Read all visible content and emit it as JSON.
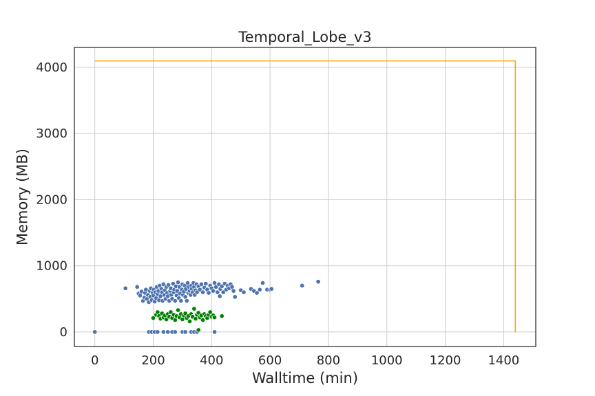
{
  "chart_data": {
    "type": "scatter",
    "title": "Temporal_Lobe_v3",
    "xlabel": "Walltime (min)",
    "ylabel": "Memory (MB)",
    "xlim": [
      -70,
      1510
    ],
    "ylim": [
      -220,
      4300
    ],
    "xticks": [
      0,
      200,
      400,
      600,
      800,
      1000,
      1200,
      1400
    ],
    "yticks": [
      0,
      1000,
      2000,
      3000,
      4000
    ],
    "grid": true,
    "colors": {
      "series_blue": "#4c72b0",
      "series_green": "#008000",
      "limit_line": "#ffa500",
      "grid": "#cccccc",
      "text": "#262626"
    },
    "series": [
      {
        "color": "#4c72b0",
        "points": [
          [
            0,
            0
          ],
          [
            105,
            660
          ],
          [
            145,
            680
          ],
          [
            150,
            580
          ],
          [
            155,
            550
          ],
          [
            160,
            610
          ],
          [
            165,
            470
          ],
          [
            170,
            520
          ],
          [
            172,
            590
          ],
          [
            175,
            640
          ],
          [
            178,
            500
          ],
          [
            182,
            560
          ],
          [
            185,
            450
          ],
          [
            188,
            620
          ],
          [
            190,
            530
          ],
          [
            192,
            660
          ],
          [
            195,
            480
          ],
          [
            198,
            590
          ],
          [
            200,
            550
          ],
          [
            202,
            640
          ],
          [
            205,
            460
          ],
          [
            207,
            600
          ],
          [
            210,
            510
          ],
          [
            212,
            680
          ],
          [
            215,
            570
          ],
          [
            218,
            620
          ],
          [
            220,
            480
          ],
          [
            222,
            700
          ],
          [
            225,
            540
          ],
          [
            228,
            650
          ],
          [
            230,
            600
          ],
          [
            232,
            470
          ],
          [
            235,
            720
          ],
          [
            238,
            560
          ],
          [
            240,
            630
          ],
          [
            242,
            500
          ],
          [
            245,
            680
          ],
          [
            248,
            590
          ],
          [
            250,
            540
          ],
          [
            252,
            710
          ],
          [
            255,
            470
          ],
          [
            258,
            620
          ],
          [
            260,
            660
          ],
          [
            262,
            560
          ],
          [
            265,
            500
          ],
          [
            268,
            730
          ],
          [
            270,
            600
          ],
          [
            272,
            640
          ],
          [
            275,
            470
          ],
          [
            278,
            690
          ],
          [
            280,
            550
          ],
          [
            282,
            620
          ],
          [
            285,
            750
          ],
          [
            288,
            510
          ],
          [
            290,
            680
          ],
          [
            292,
            580
          ],
          [
            295,
            470
          ],
          [
            298,
            640
          ],
          [
            300,
            720
          ],
          [
            302,
            560
          ],
          [
            305,
            610
          ],
          [
            308,
            700
          ],
          [
            310,
            530
          ],
          [
            312,
            650
          ],
          [
            315,
            470
          ],
          [
            318,
            740
          ],
          [
            320,
            590
          ],
          [
            322,
            680
          ],
          [
            325,
            620
          ],
          [
            328,
            560
          ],
          [
            330,
            700
          ],
          [
            332,
            650
          ],
          [
            335,
            600
          ],
          [
            338,
            740
          ],
          [
            340,
            680
          ],
          [
            342,
            560
          ],
          [
            345,
            630
          ],
          [
            348,
            720
          ],
          [
            350,
            600
          ],
          [
            355,
            690
          ],
          [
            360,
            640
          ],
          [
            365,
            720
          ],
          [
            370,
            600
          ],
          [
            375,
            670
          ],
          [
            380,
            730
          ],
          [
            385,
            640
          ],
          [
            390,
            590
          ],
          [
            395,
            700
          ],
          [
            400,
            660
          ],
          [
            405,
            620
          ],
          [
            410,
            740
          ],
          [
            415,
            680
          ],
          [
            420,
            600
          ],
          [
            425,
            720
          ],
          [
            428,
            540
          ],
          [
            430,
            650
          ],
          [
            435,
            690
          ],
          [
            440,
            600
          ],
          [
            445,
            730
          ],
          [
            450,
            640
          ],
          [
            455,
            700
          ],
          [
            460,
            660
          ],
          [
            465,
            720
          ],
          [
            470,
            680
          ],
          [
            475,
            620
          ],
          [
            480,
            530
          ],
          [
            500,
            630
          ],
          [
            510,
            600
          ],
          [
            535,
            650
          ],
          [
            545,
            620
          ],
          [
            555,
            590
          ],
          [
            565,
            640
          ],
          [
            575,
            740
          ],
          [
            590,
            640
          ],
          [
            600,
            640
          ],
          [
            605,
            650
          ],
          [
            710,
            700
          ],
          [
            765,
            760
          ],
          [
            185,
            0
          ],
          [
            195,
            0
          ],
          [
            205,
            0
          ],
          [
            215,
            0
          ],
          [
            235,
            0
          ],
          [
            250,
            0
          ],
          [
            265,
            0
          ],
          [
            275,
            0
          ],
          [
            300,
            0
          ],
          [
            310,
            0
          ],
          [
            330,
            0
          ],
          [
            340,
            0
          ],
          [
            350,
            0
          ],
          [
            410,
            0
          ]
        ]
      },
      {
        "color": "#008000",
        "points": [
          [
            200,
            210
          ],
          [
            210,
            260
          ],
          [
            215,
            300
          ],
          [
            220,
            240
          ],
          [
            225,
            200
          ],
          [
            230,
            280
          ],
          [
            235,
            220
          ],
          [
            240,
            250
          ],
          [
            245,
            190
          ],
          [
            250,
            270
          ],
          [
            255,
            230
          ],
          [
            260,
            300
          ],
          [
            265,
            210
          ],
          [
            270,
            260
          ],
          [
            275,
            180
          ],
          [
            280,
            240
          ],
          [
            285,
            330
          ],
          [
            290,
            220
          ],
          [
            295,
            270
          ],
          [
            300,
            190
          ],
          [
            305,
            250
          ],
          [
            310,
            280
          ],
          [
            315,
            210
          ],
          [
            320,
            240
          ],
          [
            325,
            160
          ],
          [
            330,
            270
          ],
          [
            335,
            230
          ],
          [
            340,
            350
          ],
          [
            345,
            200
          ],
          [
            350,
            260
          ],
          [
            355,
            290
          ],
          [
            360,
            220
          ],
          [
            365,
            250
          ],
          [
            370,
            180
          ],
          [
            375,
            270
          ],
          [
            380,
            240
          ],
          [
            385,
            210
          ],
          [
            390,
            260
          ],
          [
            395,
            300
          ],
          [
            400,
            230
          ],
          [
            405,
            250
          ],
          [
            410,
            220
          ],
          [
            435,
            240
          ],
          [
            355,
            30
          ]
        ]
      }
    ],
    "limit_line": {
      "color": "#ffa500",
      "points": [
        [
          0,
          4096
        ],
        [
          1440,
          4096
        ],
        [
          1440,
          0
        ]
      ]
    }
  }
}
